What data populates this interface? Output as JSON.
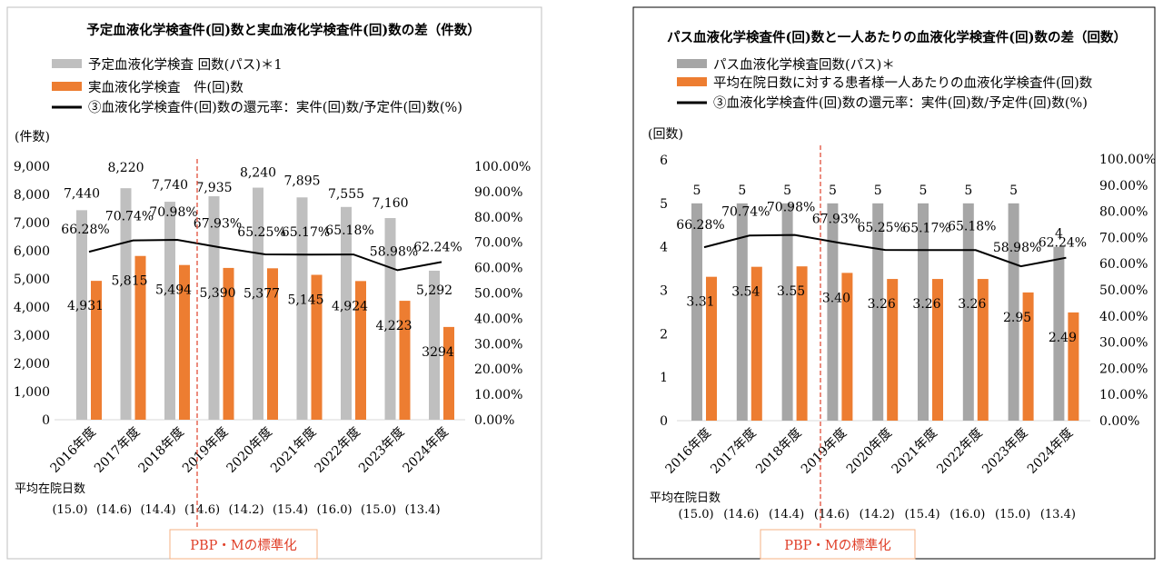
{
  "charts": [
    {
      "title": "予定血液化学検査件(回)数と実血液化学検査件(回)数の差（件数）",
      "legend": [
        "予定血液化学検査 回数(パス)＊1",
        "実血液化学検査　件(回)数",
        "③血液化学検査件(回)数の還元率：実件(回)数/予定件(回)数(%)"
      ],
      "yunit": "(件数)",
      "yticks": [
        "0",
        "1,000",
        "2,000",
        "3,000",
        "4,000",
        "5,000",
        "6,000",
        "7,000",
        "8,000",
        "9,000"
      ],
      "y2ticks": [
        "0.00%",
        "10.00%",
        "20.00%",
        "30.00%",
        "40.00%",
        "50.00%",
        "60.00%",
        "70.00%",
        "80.00%",
        "90.00%",
        "100.00%"
      ],
      "stay_label": "平均在院日数",
      "stays": [
        "(15.0)",
        "(14.6)",
        "(14.4)",
        "(14.6)",
        "(14.2)",
        "(15.4)",
        "(16.0)",
        "(15.0)",
        "(13.4)"
      ],
      "pbp_label": "PBP・Mの標準化"
    },
    {
      "title": "パス血液化学検査件(回)数と一人あたりの血液化学検査件(回)数の差（回数）",
      "legend": [
        "パス血液化学検査回数(パス)＊",
        "平均在院日数に対する患者様一人あたりの血液化学検査件(回)数",
        "③血液化学検査件(回)数の還元率：実件(回)数/予定件(回)数(%)"
      ],
      "yunit": "(回数)",
      "yticks": [
        "0",
        "1",
        "2",
        "3",
        "4",
        "5",
        "6"
      ],
      "y2ticks": [
        "0.00%",
        "10.00%",
        "20.00%",
        "30.00%",
        "40.00%",
        "50.00%",
        "60.00%",
        "70.00%",
        "80.00%",
        "90.00%",
        "100.00%"
      ],
      "stay_label": "平均在院日数",
      "stays": [
        "(15.0)",
        "(14.6)",
        "(14.4)",
        "(14.6)",
        "(14.2)",
        "(15.4)",
        "(16.0)",
        "(15.0)",
        "(13.4)"
      ],
      "pbp_label": "PBP・Mの標準化"
    }
  ],
  "chart_data": [
    {
      "type": "bar",
      "categories": [
        "2016年度",
        "2017年度",
        "2018年度",
        "2019年度",
        "2020年度",
        "2021年度",
        "2022年度",
        "2023年度",
        "2024年度"
      ],
      "series": [
        {
          "name": "予定血液化学検査 回数(パス)＊1",
          "values": [
            7440,
            8220,
            7740,
            7935,
            8240,
            7895,
            7555,
            7160,
            5292
          ],
          "labels": [
            "7,440",
            "8,220",
            "7,740",
            "7,935",
            "8,240",
            "7,895",
            "7,555",
            "7,160",
            "5,292"
          ],
          "color": "#bfbfbf"
        },
        {
          "name": "実血液化学検査　件(回)数",
          "values": [
            4931,
            5815,
            5494,
            5390,
            5377,
            5145,
            4924,
            4223,
            3294
          ],
          "labels": [
            "4,931",
            "5,815",
            "5,494",
            "5,390",
            "5,377",
            "5,145",
            "4,924",
            "4,223",
            "3294"
          ],
          "color": "#ed7d31"
        },
        {
          "name": "③血液化学検査件(回)数の還元率：実件(回)数/予定件(回)数(%)",
          "type": "line",
          "values": [
            66.28,
            70.74,
            70.98,
            67.93,
            65.25,
            65.17,
            65.18,
            58.98,
            62.24
          ],
          "labels": [
            "66.28%",
            "70.74%",
            "70.98%",
            "67.93%",
            "65.25%",
            "65.17%",
            "65.18%",
            "58.98%",
            "62.24%"
          ],
          "color": "#000000"
        }
      ],
      "ylim": [
        0,
        9000
      ],
      "y2lim": [
        0,
        100
      ]
    },
    {
      "type": "bar",
      "categories": [
        "2016年度",
        "2017年度",
        "2018年度",
        "2019年度",
        "2020年度",
        "2021年度",
        "2022年度",
        "2023年度",
        "2024年度"
      ],
      "series": [
        {
          "name": "パス血液化学検査回数(パス)＊",
          "values": [
            5,
            5,
            5,
            5,
            5,
            5,
            5,
            5,
            4
          ],
          "labels": [
            "5",
            "5",
            "5",
            "5",
            "5",
            "5",
            "5",
            "5",
            "4"
          ],
          "color": "#a6a6a6"
        },
        {
          "name": "平均在院日数に対する患者様一人あたりの血液化学検査件(回)数",
          "values": [
            3.31,
            3.54,
            3.55,
            3.4,
            3.26,
            3.26,
            3.26,
            2.95,
            2.49
          ],
          "labels": [
            "3.31",
            "3.54",
            "3.55",
            "3.40",
            "3.26",
            "3.26",
            "3.26",
            "2.95",
            "2.49"
          ],
          "color": "#ed7d31"
        },
        {
          "name": "③血液化学検査件(回)数の還元率：実件(回)数/予定件(回)数(%)",
          "type": "line",
          "values": [
            66.28,
            70.74,
            70.98,
            67.93,
            65.25,
            65.17,
            65.18,
            58.98,
            62.24
          ],
          "labels": [
            "66.28%",
            "70.74%",
            "70.98%",
            "67.93%",
            "65.25%",
            "65.17%",
            "65.18%",
            "58.98%",
            "62.24%"
          ],
          "color": "#000000"
        }
      ],
      "ylim": [
        0,
        6
      ],
      "y2lim": [
        0,
        100
      ]
    }
  ]
}
